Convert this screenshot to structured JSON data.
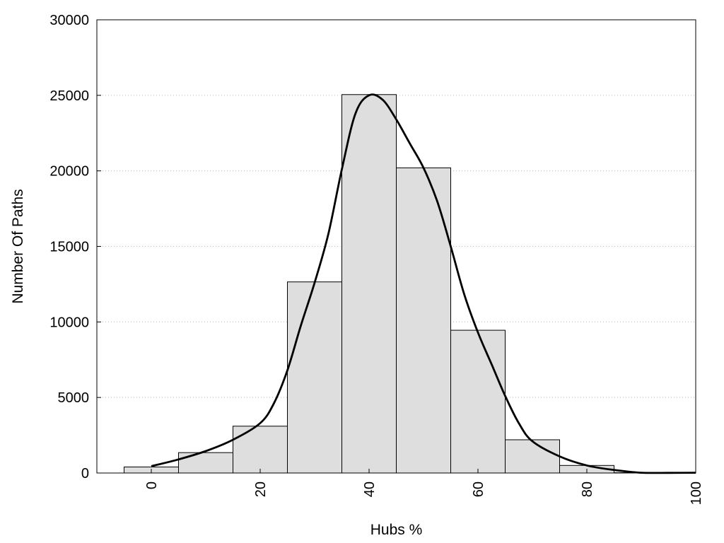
{
  "chart_data": {
    "type": "bar",
    "title": "",
    "xlabel": "Hubs %",
    "ylabel": "Number Of Paths",
    "xlim": [
      -10,
      100
    ],
    "ylim": [
      0,
      30000
    ],
    "x_ticks": [
      0,
      20,
      40,
      60,
      80,
      100
    ],
    "y_ticks": [
      0,
      5000,
      10000,
      15000,
      20000,
      25000,
      30000
    ],
    "grid": "horizontal-dotted",
    "legend": "none",
    "bar_fill": "#dedede",
    "bar_stroke": "#000000",
    "curve_stroke": "#000000",
    "bins": [
      {
        "start": -5,
        "end": 5,
        "value": 400
      },
      {
        "start": 5,
        "end": 15,
        "value": 1350
      },
      {
        "start": 15,
        "end": 25,
        "value": 3100
      },
      {
        "start": 25,
        "end": 35,
        "value": 12650
      },
      {
        "start": 35,
        "end": 45,
        "value": 25050
      },
      {
        "start": 45,
        "end": 55,
        "value": 20200
      },
      {
        "start": 55,
        "end": 65,
        "value": 9450
      },
      {
        "start": 65,
        "end": 75,
        "value": 2200
      },
      {
        "start": 75,
        "end": 85,
        "value": 500
      },
      {
        "start": 85,
        "end": 95,
        "value": 20
      },
      {
        "start": 95,
        "end": 105,
        "value": 10
      }
    ],
    "density_curve": {
      "x": [
        0,
        5,
        10,
        15,
        20,
        22.5,
        25,
        27.5,
        30,
        32.5,
        35,
        37.5,
        40,
        42.5,
        45,
        47.5,
        50,
        52.5,
        55,
        57.5,
        60,
        62.5,
        65,
        67.5,
        70,
        75,
        80,
        85,
        90,
        95,
        100
      ],
      "y": [
        450,
        900,
        1450,
        2200,
        3300,
        4600,
        6800,
        9800,
        12600,
        15800,
        20100,
        23800,
        25000,
        24700,
        23400,
        21800,
        20200,
        18000,
        15000,
        11800,
        9300,
        7200,
        5100,
        3300,
        2100,
        1100,
        500,
        200,
        20,
        10,
        20
      ]
    }
  }
}
